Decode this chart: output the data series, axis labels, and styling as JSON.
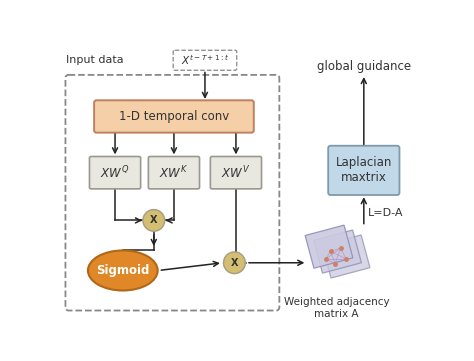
{
  "fig_width": 4.74,
  "fig_height": 3.61,
  "dpi": 100,
  "bg_color": "#ffffff",
  "input_label": "Input data",
  "conv_box_label": "1-D temporal conv",
  "conv_box_color": "#f5cfa8",
  "conv_box_edge": "#c08060",
  "xw_box_color": "#e8e8e0",
  "xw_box_edge": "#999990",
  "mult_circle_color": "#d4be72",
  "mult_circle_edge": "#aaa080",
  "sigmoid_label": "Sigmoid",
  "sigmoid_color": "#e08828",
  "sigmoid_edge": "#b06818",
  "laplacian_label": "Laplacian\nmaxtrix",
  "laplacian_color": "#c0d8e8",
  "laplacian_edge": "#809aaa",
  "global_guidance_label": "global guidance",
  "lda_label": "L=D-A",
  "weighted_label": "Weighted adjacency\nmatrix A",
  "dashed_box_color": "#888888",
  "arrow_color": "#222222"
}
